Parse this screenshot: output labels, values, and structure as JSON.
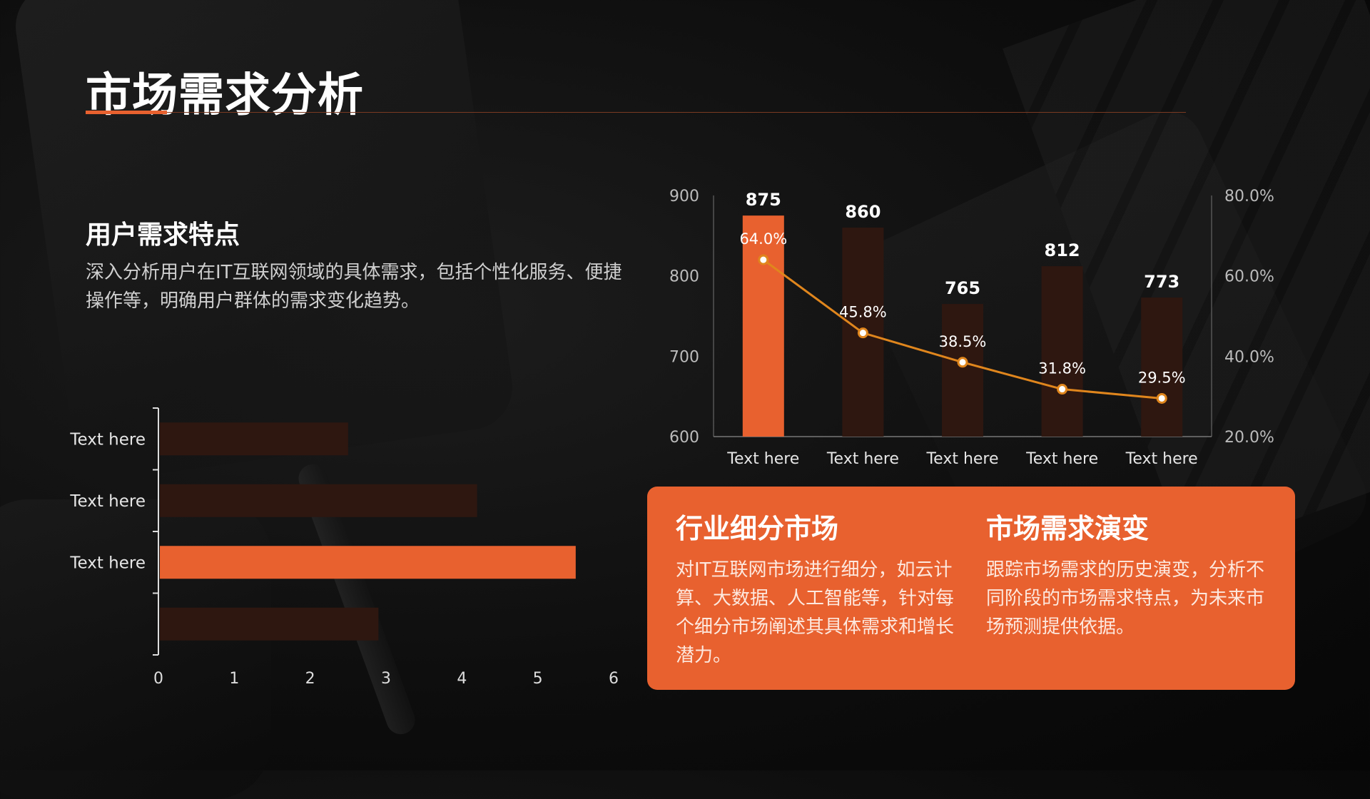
{
  "slide": {
    "title": "市场需求分析",
    "section": {
      "title": "用户需求特点",
      "text": "深入分析用户在IT互联网领域的具体需求，包括个性化服务、便捷操作等，明确用户群体的需求变化趋势。"
    },
    "card": {
      "left_title": "行业细分市场",
      "left_text": "对IT互联网市场进行细分，如云计算、大数据、人工智能等，针对每个细分市场阐述其具体需求和增长潜力。",
      "right_title": "市场需求演变",
      "right_text": "跟踪市场需求的历史演变，分析不同阶段的市场需求特点，为未来市场预测提供依据。"
    }
  },
  "colors": {
    "accent": "#e8612f",
    "bar_dim": "#2e1710",
    "line": "#e0861d",
    "axis": "#bbbbbb"
  },
  "chart_data": [
    {
      "type": "bar",
      "orientation": "horizontal",
      "categories": [
        "Text here",
        "Text here",
        "Text here",
        ""
      ],
      "values": [
        2.5,
        4.2,
        5.5,
        2.9
      ],
      "highlight_index": 2,
      "xlim": [
        0,
        6
      ],
      "xticks": [
        "0",
        "1",
        "2",
        "3",
        "4",
        "5",
        "6"
      ]
    },
    {
      "type": "bar+line",
      "categories": [
        "Text here",
        "Text here",
        "Text here",
        "Text here",
        "Text here"
      ],
      "bar_values": [
        875,
        860,
        765,
        812,
        773
      ],
      "bar_labels": [
        "875",
        "860",
        "765",
        "812",
        "773"
      ],
      "line_values": [
        64.0,
        45.8,
        38.5,
        31.8,
        29.5
      ],
      "line_labels": [
        "64.0%",
        "45.8%",
        "38.5%",
        "31.8%",
        "29.5%"
      ],
      "highlight_index": 0,
      "ylim_left": [
        600,
        900
      ],
      "yticks_left": [
        "600",
        "700",
        "800",
        "900"
      ],
      "ylim_right": [
        20,
        80
      ],
      "yticks_right": [
        "20.0%",
        "40.0%",
        "60.0%",
        "80.0%"
      ]
    }
  ]
}
